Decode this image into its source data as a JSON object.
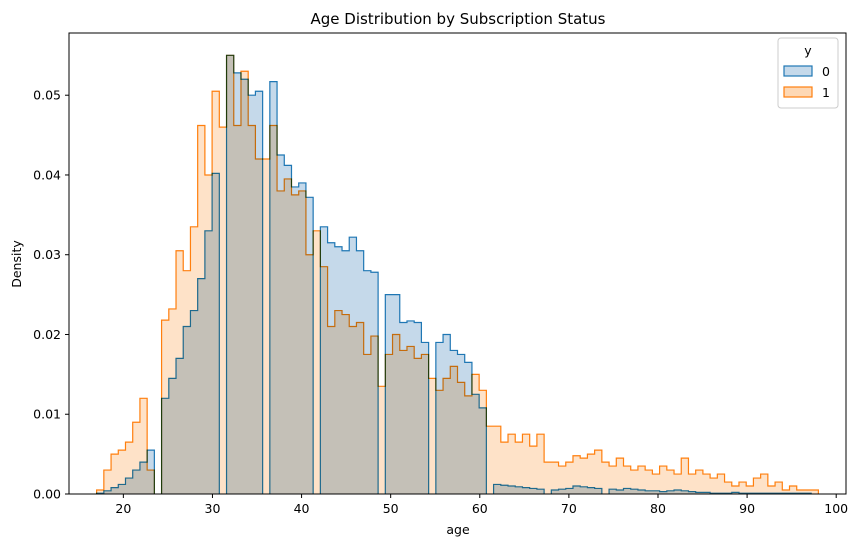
{
  "chart_data": {
    "type": "histogram",
    "title": "Age Distribution by Subscription Status",
    "xlabel": "age",
    "ylabel": "Density",
    "xlim": [
      13.9,
      101.1
    ],
    "ylim": [
      0,
      0.0578
    ],
    "xticks": [
      20,
      30,
      40,
      50,
      60,
      70,
      80,
      90,
      100
    ],
    "yticks": [
      0.0,
      0.01,
      0.02,
      0.03,
      0.04,
      0.05
    ],
    "ytick_labels": [
      "0.00",
      "0.01",
      "0.02",
      "0.03",
      "0.04",
      "0.05"
    ],
    "bin_start": 17.0,
    "bin_width": 0.81,
    "legend": {
      "title": "y",
      "position": "top-right"
    },
    "series": [
      {
        "name": "0",
        "line_color": "#1f77b4",
        "fill_color": "#c5d9ea",
        "values": [
          0.0001,
          0.0004,
          0.0008,
          0.0012,
          0.002,
          0.003,
          0.004,
          0.0055,
          0,
          0.012,
          0.0145,
          0.017,
          0.021,
          0.023,
          0.027,
          0.033,
          0.0402,
          0,
          0.055,
          0.0528,
          0.052,
          0.05,
          0.0505,
          0,
          0.0517,
          0.0425,
          0.0412,
          0.0385,
          0.039,
          0.0372,
          0,
          0.0335,
          0.0315,
          0.031,
          0.0305,
          0.0322,
          0.0305,
          0.028,
          0.0278,
          0,
          0.025,
          0.025,
          0.0215,
          0.0217,
          0.0215,
          0.019,
          0,
          0.019,
          0.02,
          0.018,
          0.0175,
          0.0165,
          0.0125,
          0.0108,
          0,
          0.0012,
          0.0011,
          0.001,
          0.0009,
          0.0008,
          0.0007,
          0.0006,
          0,
          0.0005,
          0.0006,
          0.0007,
          0.001,
          0.0009,
          0.0008,
          0.0007,
          0,
          0.0006,
          0.0005,
          0.0007,
          0.0006,
          0.0005,
          0.0004,
          0.0004,
          0.0003,
          0.0004,
          0.0005,
          0.0004,
          0.0003,
          0.0002,
          0.0002,
          0.0001,
          0.0001,
          0.0001,
          0.0002,
          0.0001,
          0.0001,
          0.0001,
          0.0001,
          0.0001,
          0.0001,
          0.0001,
          0.0001,
          0.0001,
          0.0001
        ]
      },
      {
        "name": "1",
        "line_color": "#ff7f0e",
        "fill_color": "#fdd8b5",
        "values": [
          0.0005,
          0.003,
          0.005,
          0.0055,
          0.0065,
          0.009,
          0.012,
          0.003,
          0,
          0.0218,
          0.0232,
          0.0305,
          0.028,
          0.0335,
          0.0462,
          0.04,
          0.0505,
          0.046,
          0.055,
          0.0462,
          0.053,
          0.0462,
          0.042,
          0.042,
          0.0462,
          0.038,
          0.0395,
          0.0375,
          0.038,
          0.03,
          0.033,
          0.0285,
          0.021,
          0.023,
          0.0225,
          0.021,
          0.0215,
          0.0175,
          0.0198,
          0.0135,
          0.0175,
          0.02,
          0.018,
          0.0185,
          0.017,
          0.0175,
          0.0145,
          0.013,
          0.0145,
          0.016,
          0.014,
          0.0123,
          0.015,
          0.013,
          0.0085,
          0.0085,
          0.0065,
          0.0075,
          0.0065,
          0.0075,
          0.006,
          0.0075,
          0.004,
          0.004,
          0.0035,
          0.004,
          0.0048,
          0.0045,
          0.005,
          0.0055,
          0.004,
          0.0035,
          0.0045,
          0.0035,
          0.003,
          0.0035,
          0.003,
          0.0025,
          0.0035,
          0.003,
          0.0025,
          0.0045,
          0.0025,
          0.003,
          0.0025,
          0.002,
          0.0025,
          0.0015,
          0.001,
          0.0015,
          0.001,
          0.002,
          0.0025,
          0.001,
          0.0015,
          0.0005,
          0.001,
          0.0005,
          0.0005,
          0.0005
        ]
      }
    ]
  }
}
